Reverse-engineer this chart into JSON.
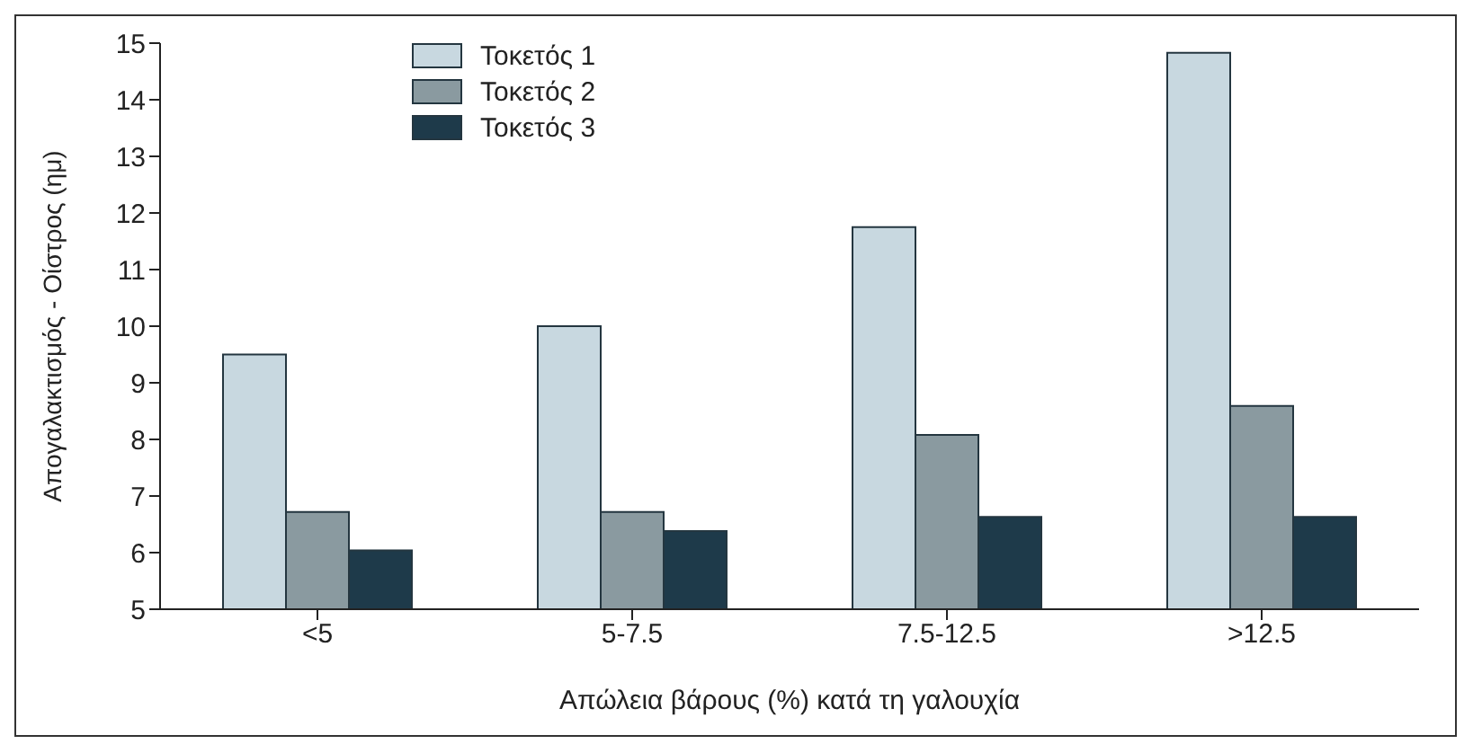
{
  "chart_data": {
    "type": "bar",
    "xlabel": "Απώλεια βάρους (%) κατά τη γαλουχία",
    "ylabel": "Απογαλακτισμός - Οίστρος (ημ)",
    "categories": [
      "<5",
      "5-7.5",
      "7.5-12.5",
      ">12.5"
    ],
    "series": [
      {
        "name": "Τοκετός 1",
        "color": "#c8d8e0",
        "values": [
          9.5,
          10.0,
          11.75,
          14.83
        ]
      },
      {
        "name": "Τοκετός 2",
        "color": "#8a9aa0",
        "values": [
          6.72,
          6.72,
          8.08,
          8.59
        ]
      },
      {
        "name": "Τοκετός 3",
        "color": "#1e3a4a",
        "values": [
          6.04,
          6.38,
          6.63,
          6.63
        ]
      }
    ],
    "ylim": [
      5,
      15
    ],
    "yticks": [
      5,
      6,
      7,
      8,
      9,
      10,
      11,
      12,
      13,
      14,
      15
    ],
    "grid": false,
    "legend": "top left"
  }
}
